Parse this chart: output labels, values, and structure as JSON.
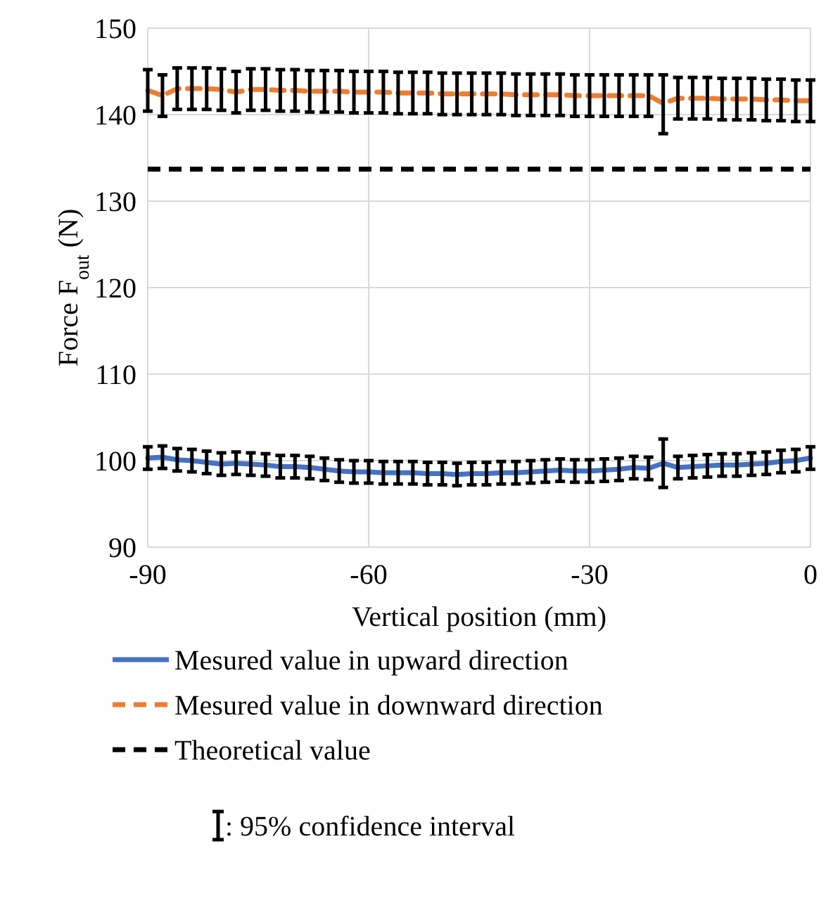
{
  "chart_data": {
    "type": "line",
    "xlabel": "Vertical position (mm)",
    "ylabel": "Force F$_{out}$ (N)",
    "x": [
      -90,
      -88,
      -86,
      -84,
      -82,
      -80,
      -78,
      -76,
      -74,
      -72,
      -70,
      -68,
      -66,
      -64,
      -62,
      -60,
      -58,
      -56,
      -54,
      -52,
      -50,
      -48,
      -46,
      -44,
      -42,
      -40,
      -38,
      -36,
      -34,
      -32,
      -30,
      -28,
      -26,
      -24,
      -22,
      -20,
      -18,
      -16,
      -14,
      -12,
      -10,
      -8,
      -6,
      -4,
      -2,
      0
    ],
    "xlim": [
      -90,
      0
    ],
    "xticks": [
      -90,
      -60,
      -30,
      0
    ],
    "ylim": [
      90,
      150
    ],
    "yticks": [
      90,
      100,
      110,
      120,
      130,
      140,
      150
    ],
    "grid": true,
    "legend": "bottom",
    "marker": "none",
    "series": [
      {
        "name": "Mesured value in upward direction",
        "color": "#4472c4",
        "line_style": "solid",
        "values": [
          100.3,
          100.4,
          100.1,
          100.0,
          99.8,
          99.6,
          99.7,
          99.6,
          99.5,
          99.3,
          99.3,
          99.2,
          99.0,
          98.8,
          98.7,
          98.7,
          98.6,
          98.6,
          98.6,
          98.5,
          98.5,
          98.4,
          98.5,
          98.5,
          98.6,
          98.6,
          98.7,
          98.8,
          98.9,
          98.8,
          98.8,
          98.9,
          99.0,
          99.2,
          99.1,
          99.7,
          99.2,
          99.3,
          99.4,
          99.5,
          99.5,
          99.6,
          99.7,
          99.9,
          100.0,
          100.3
        ],
        "errors": [
          1.3,
          1.3,
          1.3,
          1.3,
          1.3,
          1.3,
          1.3,
          1.3,
          1.3,
          1.3,
          1.3,
          1.3,
          1.3,
          1.3,
          1.3,
          1.3,
          1.3,
          1.3,
          1.3,
          1.3,
          1.3,
          1.3,
          1.3,
          1.3,
          1.3,
          1.3,
          1.3,
          1.3,
          1.3,
          1.3,
          1.3,
          1.3,
          1.3,
          1.3,
          1.3,
          2.8,
          1.3,
          1.3,
          1.3,
          1.3,
          1.3,
          1.3,
          1.3,
          1.3,
          1.3,
          1.3
        ]
      },
      {
        "name": "Mesured value in downward direction",
        "color": "#ed7d31",
        "line_style": "dashed",
        "values": [
          142.8,
          142.2,
          143.0,
          143.0,
          143.0,
          142.9,
          142.6,
          142.9,
          142.9,
          142.8,
          142.8,
          142.7,
          142.7,
          142.7,
          142.6,
          142.6,
          142.6,
          142.5,
          142.5,
          142.5,
          142.4,
          142.4,
          142.4,
          142.4,
          142.4,
          142.3,
          142.3,
          142.3,
          142.3,
          142.2,
          142.2,
          142.2,
          142.2,
          142.2,
          142.2,
          141.3,
          141.9,
          141.9,
          141.9,
          141.8,
          141.8,
          141.8,
          141.7,
          141.7,
          141.6,
          141.6
        ],
        "errors": [
          2.4,
          2.4,
          2.4,
          2.4,
          2.4,
          2.4,
          2.4,
          2.4,
          2.4,
          2.4,
          2.4,
          2.4,
          2.4,
          2.4,
          2.4,
          2.4,
          2.4,
          2.4,
          2.4,
          2.4,
          2.4,
          2.4,
          2.4,
          2.4,
          2.4,
          2.4,
          2.4,
          2.4,
          2.4,
          2.4,
          2.4,
          2.4,
          2.4,
          2.4,
          2.4,
          [
            137.8,
            144.6
          ],
          2.4,
          2.4,
          2.4,
          2.4,
          2.4,
          2.4,
          2.4,
          2.4,
          2.4,
          2.4
        ]
      }
    ],
    "ref_lines": [
      {
        "axis": "y",
        "value": 133.7,
        "label": "Theoretical value",
        "color": "#000000",
        "line_style": "dashed"
      }
    ],
    "annotations": [
      ": 95% confidence interval"
    ]
  }
}
